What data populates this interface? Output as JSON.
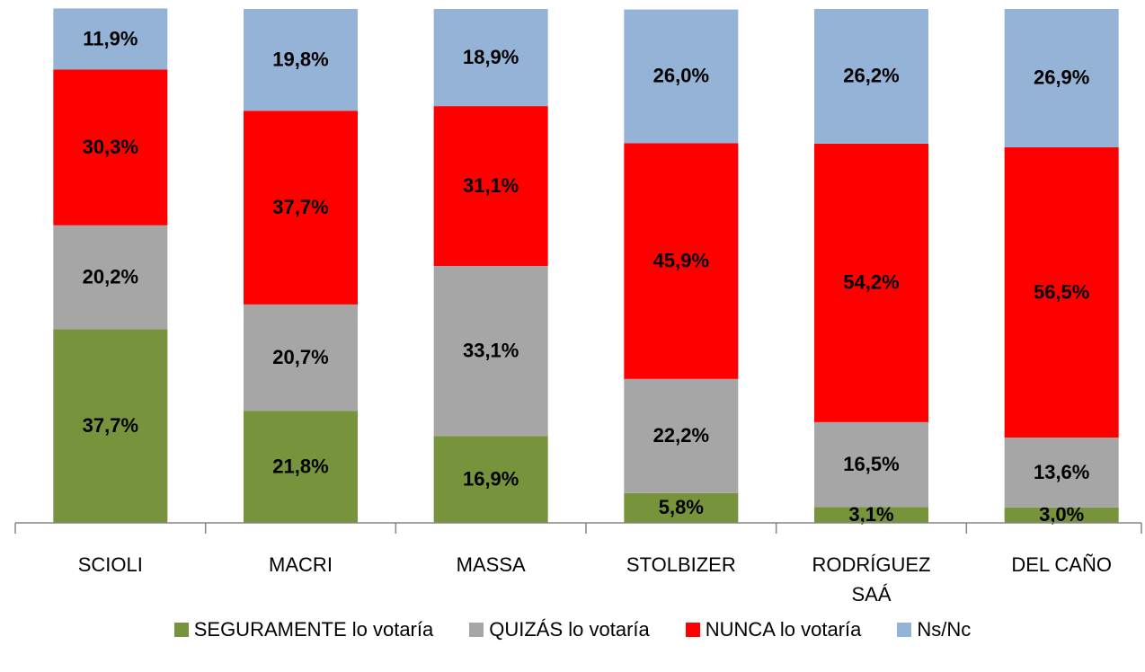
{
  "chart_data": {
    "type": "stacked_bar",
    "categories": [
      "SCIOLI",
      "MACRI",
      "MASSA",
      "STOLBIZER",
      "RODRÍGUEZ SAÁ",
      "DEL CAÑO"
    ],
    "ylim": [
      0,
      100
    ],
    "legend": "bottom",
    "series": [
      {
        "name": "SEGURAMENTE lo votaría",
        "color": "#77933c",
        "values": [
          37.7,
          21.8,
          16.9,
          5.8,
          3.1,
          3.0
        ],
        "value_labels": [
          "37,7%",
          "21,8%",
          "16,9%",
          "5,8%",
          "3,1%",
          "3,0%"
        ]
      },
      {
        "name": "QUIZÁS lo votaría",
        "color": "#a6a6a6",
        "values": [
          20.2,
          20.7,
          33.1,
          22.2,
          16.5,
          13.6
        ],
        "value_labels": [
          "20,2%",
          "20,7%",
          "33,1%",
          "22,2%",
          "16,5%",
          "13,6%"
        ]
      },
      {
        "name": "NUNCA lo votaría",
        "color": "#ff0000",
        "values": [
          30.3,
          37.7,
          31.1,
          45.9,
          54.2,
          56.5
        ],
        "value_labels": [
          "30,3%",
          "37,7%",
          "31,1%",
          "45,9%",
          "54,2%",
          "56,5%"
        ]
      },
      {
        "name": "Ns/Nc",
        "color": "#95b3d7",
        "values": [
          11.9,
          19.8,
          18.9,
          26.0,
          26.2,
          26.9
        ],
        "value_labels": [
          "11,9%",
          "19,8%",
          "18,9%",
          "26,0%",
          "26,2%",
          "26,9%"
        ]
      }
    ]
  }
}
